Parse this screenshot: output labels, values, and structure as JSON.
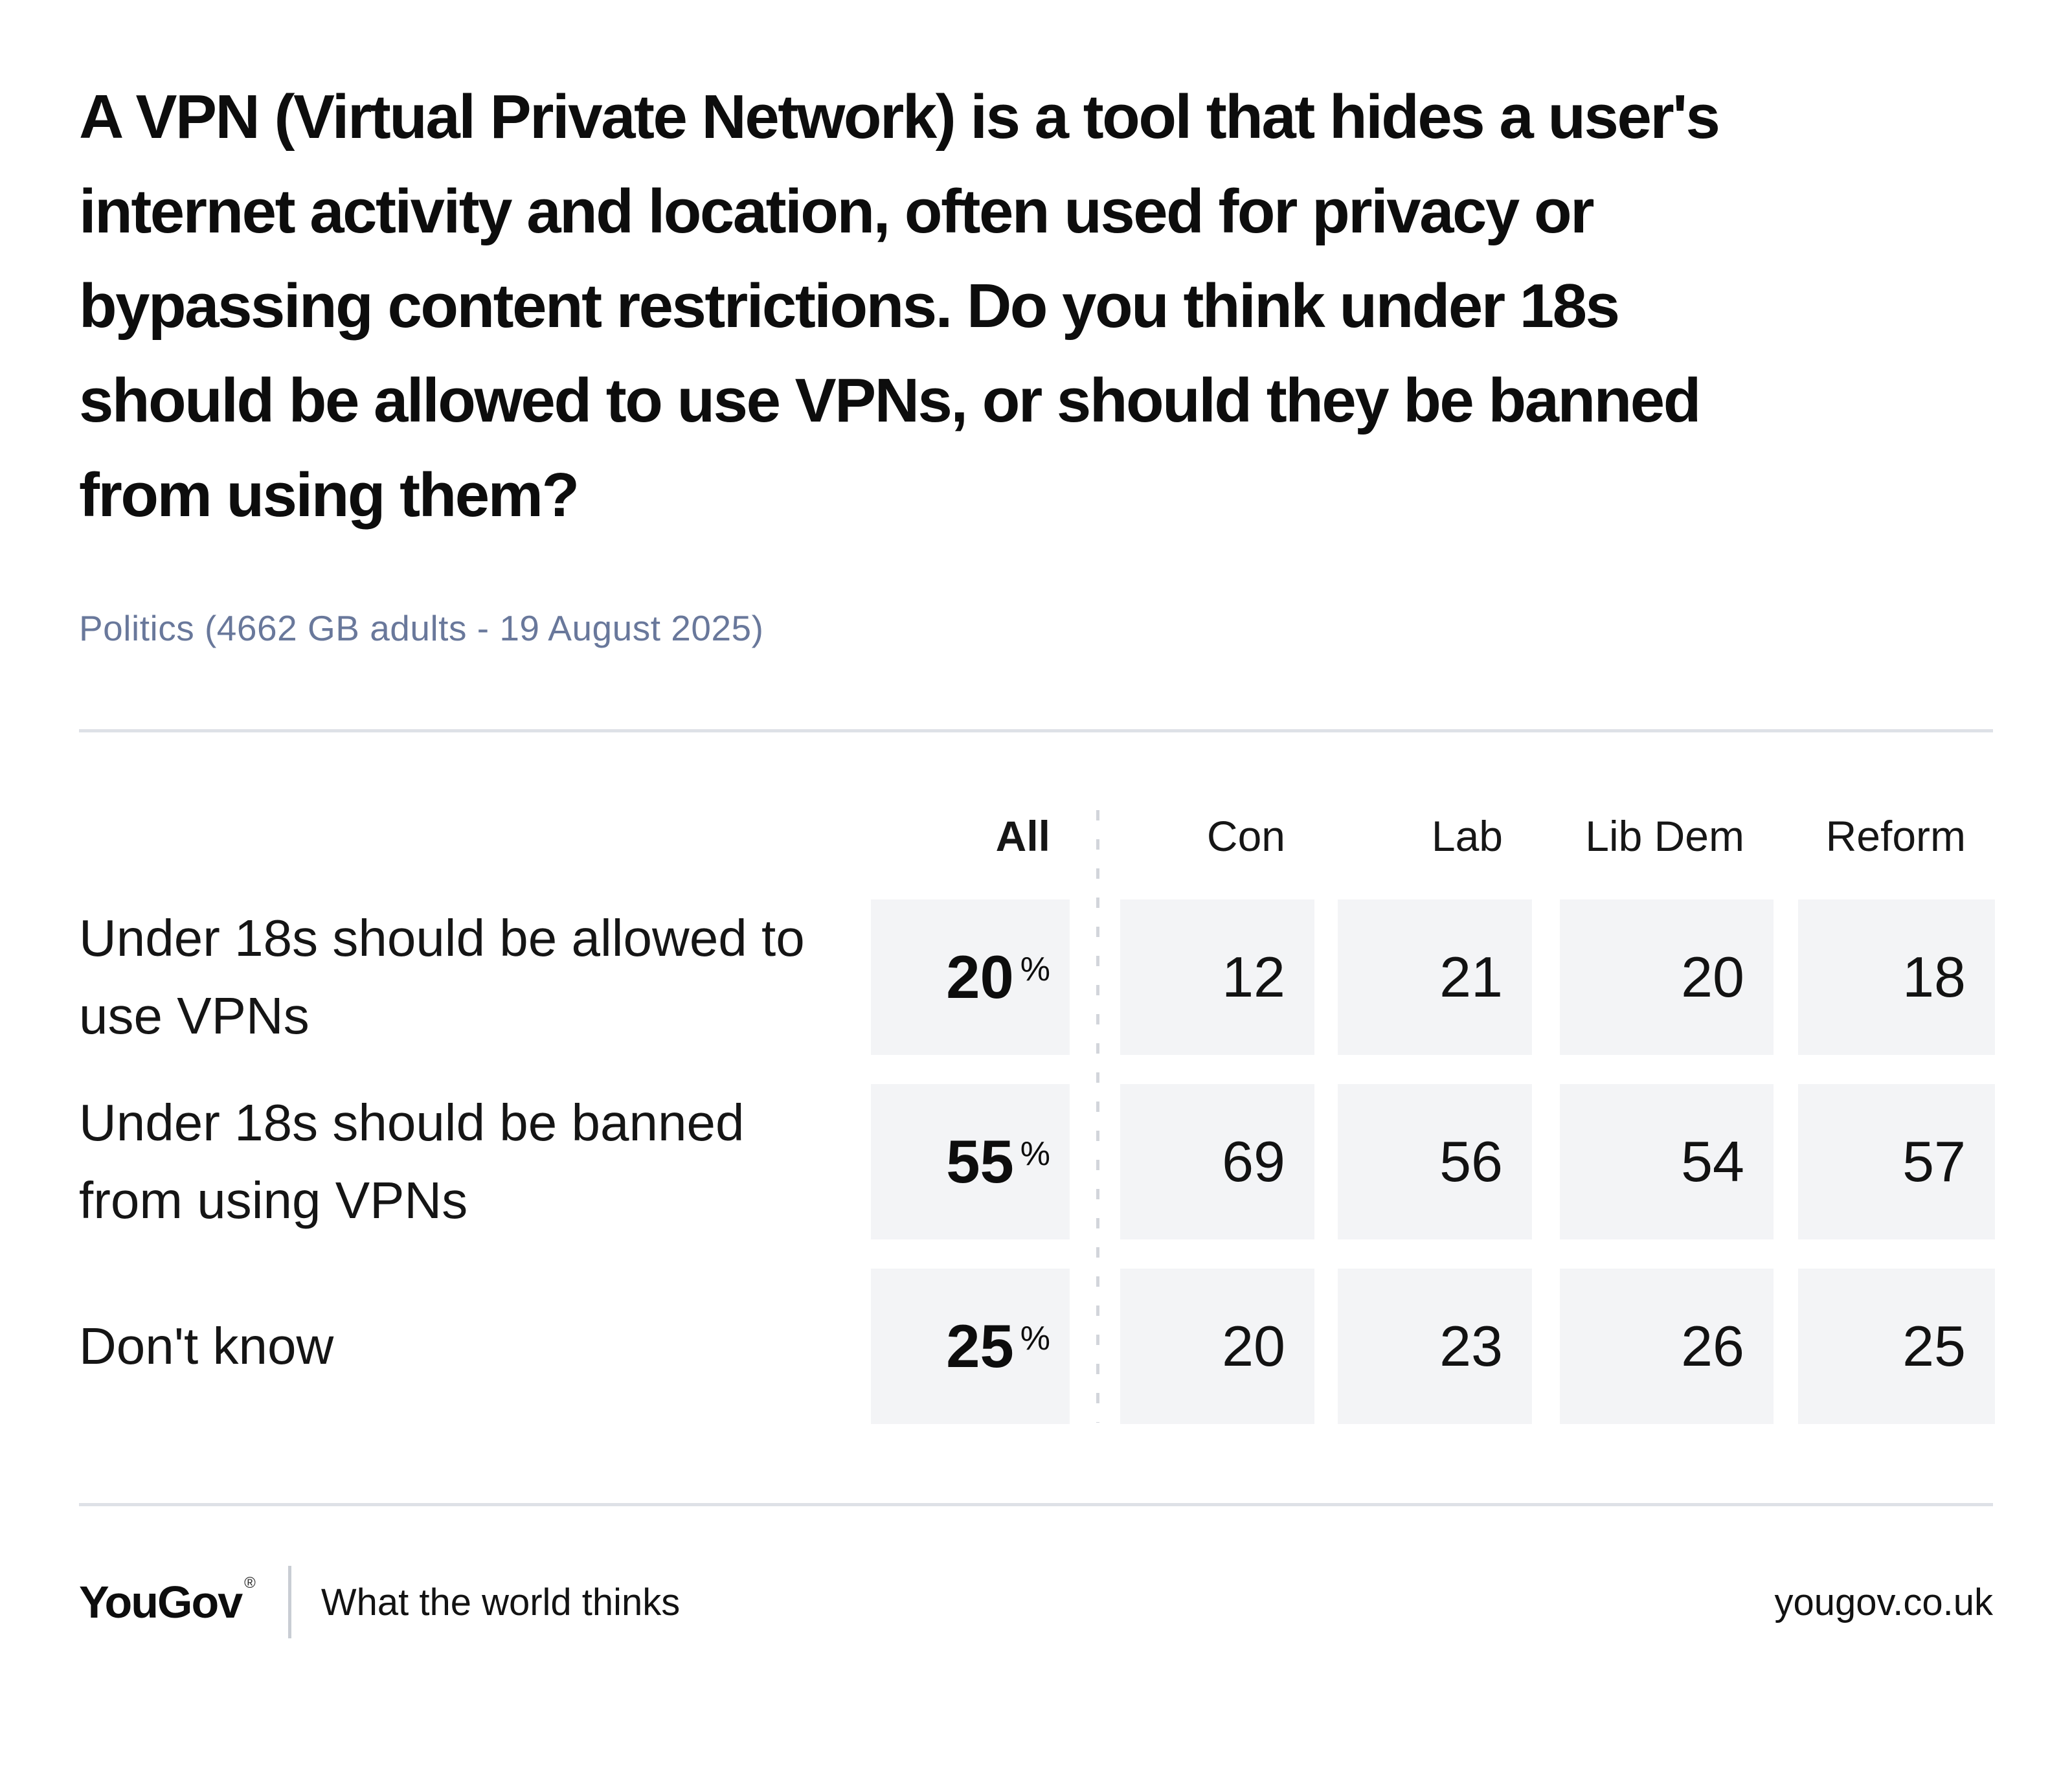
{
  "question": {
    "full_text": "A VPN (Virtual Private Network) is a tool that hides a user's internet activity and location, often used for privacy or bypassing content restrictions. Do you think under 18s should be allowed to use VPNs, or should they be banned from using them?",
    "lines": [
      "A VPN (Virtual Private Network) is a tool that hides a user's",
      "internet activity and location, often used for privacy or",
      "bypassing content restrictions. Do you think under 18s",
      "should be allowed to use VPNs, or should they be banned",
      "from using them?"
    ]
  },
  "subtitle": "Politics (4662 GB adults - 19 August 2025)",
  "table": {
    "columns": [
      "All",
      "Con",
      "Lab",
      "Lib Dem",
      "Reform"
    ],
    "percent_sign": "%",
    "rows": [
      {
        "label": "Under 18s should be allowed to use VPNs",
        "all": "20",
        "values": [
          "12",
          "21",
          "20",
          "18"
        ]
      },
      {
        "label": "Under 18s should be banned from using VPNs",
        "all": "55",
        "values": [
          "69",
          "56",
          "54",
          "57"
        ]
      },
      {
        "label": "Don't know",
        "all": "25",
        "values": [
          "20",
          "23",
          "26",
          "25"
        ]
      }
    ]
  },
  "chart_data": {
    "type": "table",
    "title": "A VPN (Virtual Private Network) is a tool that hides a user's internet activity and location, often used for privacy or bypassing content restrictions. Do you think under 18s should be allowed to use VPNs, or should they be banned from using them?",
    "subtitle": "Politics (4662 GB adults - 19 August 2025)",
    "columns": [
      "All",
      "Con",
      "Lab",
      "Lib Dem",
      "Reform"
    ],
    "row_labels": [
      "Under 18s should be allowed to use VPNs",
      "Under 18s should be banned from using VPNs",
      "Don't know"
    ],
    "values_percent": [
      [
        20,
        12,
        21,
        20,
        18
      ],
      [
        55,
        69,
        56,
        54,
        57
      ],
      [
        25,
        20,
        23,
        26,
        25
      ]
    ],
    "unit": "%"
  },
  "footer": {
    "logo": "YouGov",
    "registered": "®",
    "tagline": "What the world thinks",
    "website": "yougov.co.uk"
  },
  "colors": {
    "subtitle_link": "#69789b",
    "cell_background": "#f3f4f6",
    "rule": "#dee1e7",
    "dashed_divider": "#d2d5db",
    "text": "#0d0d0d"
  }
}
